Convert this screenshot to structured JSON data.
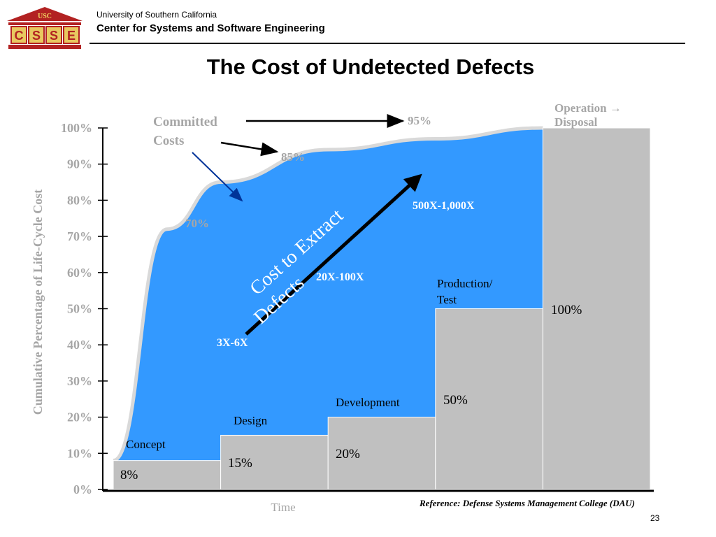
{
  "header": {
    "logo_top_text": "USC",
    "logo_letters": [
      "C",
      "S",
      "S",
      "E"
    ],
    "institution": "University of Southern California",
    "center": "Center for Systems and Software Engineering"
  },
  "slide": {
    "title": "The Cost of Undetected Defects",
    "reference": "Reference: Defense Systems Management College (DAU)",
    "page_number": "23"
  },
  "colors": {
    "blue_fill": "#3399ff",
    "bar_gray": "#c0c0c0",
    "axis_label_gray": "#a6a6a6",
    "arrow_blue": "#003399",
    "logo_red": "#b22222"
  },
  "chart_data": {
    "type": "bar",
    "ylabel": "Cumulative Percentage of Life-Cycle Cost",
    "xlabel": "Time",
    "ylim": [
      0,
      100
    ],
    "y_ticks": [
      "0%",
      "10%",
      "20%",
      "30%",
      "40%",
      "50%",
      "60%",
      "70%",
      "80%",
      "90%",
      "100%"
    ],
    "categories": [
      "Concept",
      "Design",
      "Development",
      "Production/ Test",
      "Operation → Disposal"
    ],
    "values": [
      8,
      15,
      20,
      50,
      100
    ],
    "value_labels": [
      "8%",
      "15%",
      "20%",
      "50%",
      "100%"
    ],
    "committed_costs": {
      "label": "Committed Costs",
      "curve_points": [
        [
          0,
          8
        ],
        [
          0.5,
          72
        ],
        [
          1.0,
          85
        ],
        [
          2.0,
          94
        ],
        [
          3.0,
          97
        ],
        [
          4.0,
          100
        ]
      ],
      "milestones": [
        "70%",
        "85%",
        "95%"
      ]
    },
    "extraction": {
      "arrow_label": "Cost to Extract Defects",
      "multipliers": [
        "3X-6X",
        "20X-100X",
        "500X-1,000X"
      ]
    }
  }
}
